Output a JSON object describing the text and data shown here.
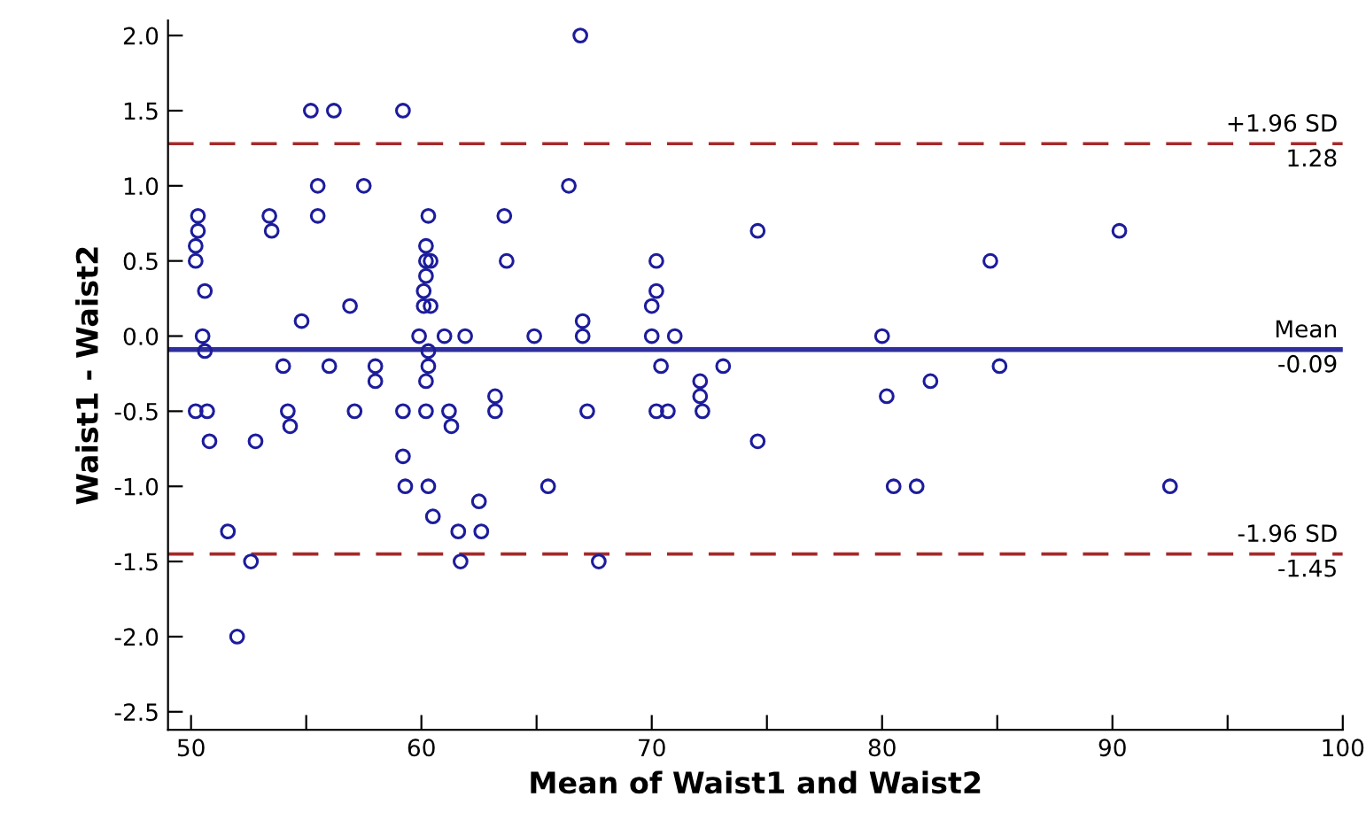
{
  "chart_data": {
    "type": "scatter",
    "xlabel": "Mean of Waist1 and Waist2",
    "ylabel": "Waist1 - Waist2",
    "marker": "circle",
    "grid": false,
    "xlim": [
      49,
      100
    ],
    "ylim": [
      -2.62,
      2.1
    ],
    "xticks": [
      50,
      {
        "value": 55,
        "label": null
      },
      60,
      {
        "value": 65,
        "label": null
      },
      70,
      {
        "value": 75,
        "label": null
      },
      80,
      {
        "value": 85,
        "label": null
      },
      90,
      {
        "value": 95,
        "label": null
      },
      100
    ],
    "yticks": [
      {
        "value": -2.5,
        "label": "-2.5"
      },
      {
        "value": -2.0,
        "label": "-2.0"
      },
      {
        "value": -1.5,
        "label": "-1.5"
      },
      {
        "value": -1.0,
        "label": "-1.0"
      },
      {
        "value": -0.5,
        "label": "-0.5"
      },
      {
        "value": 0.0,
        "label": "0.0"
      },
      {
        "value": 0.5,
        "label": "0.5"
      },
      {
        "value": 1.0,
        "label": "1.0"
      },
      {
        "value": 1.5,
        "label": "1.5"
      },
      {
        "value": 2.0,
        "label": "2.0"
      }
    ],
    "series": [
      {
        "color": "#1c1c9c",
        "x": [
          50.3,
          50.3,
          50.2,
          50.2,
          50.6,
          50.5,
          50.6,
          50.2,
          50.7,
          50.8,
          51.6,
          52.6,
          52.0,
          52.8,
          53.4,
          53.5,
          54.8,
          54.0,
          54.2,
          54.3,
          55.2,
          56.2,
          55.5,
          55.5,
          56.0,
          57.1,
          56.9,
          57.5,
          58.0,
          58.0,
          59.2,
          59.2,
          59.2,
          59.3,
          60.3,
          60.5,
          60.3,
          60.2,
          60.2,
          60.4,
          60.2,
          60.1,
          60.1,
          60.4,
          59.9,
          61.0,
          61.9,
          60.3,
          60.3,
          60.2,
          60.2,
          61.2,
          61.3,
          61.6,
          61.7,
          62.5,
          62.6,
          63.2,
          63.2,
          63.6,
          63.7,
          64.9,
          65.5,
          66.4,
          66.9,
          67.0,
          67.0,
          67.2,
          67.7,
          70.2,
          70.2,
          70.0,
          70.0,
          71.0,
          70.4,
          70.2,
          70.7,
          73.1,
          72.1,
          72.1,
          72.2,
          74.6,
          74.6,
          80.0,
          80.2,
          80.5,
          81.5,
          82.1,
          84.7,
          85.1,
          90.3,
          92.5
        ],
        "values": [
          0.8,
          0.7,
          0.6,
          0.5,
          0.3,
          0.0,
          -0.1,
          -0.5,
          -0.5,
          -0.7,
          -1.3,
          -1.5,
          -2.0,
          -0.7,
          0.8,
          0.7,
          0.1,
          -0.2,
          -0.5,
          -0.6,
          1.5,
          1.5,
          1.0,
          0.8,
          -0.2,
          -0.5,
          0.2,
          1.0,
          -0.2,
          -0.3,
          1.5,
          -0.5,
          -0.8,
          -1.0,
          -1.0,
          -1.2,
          0.8,
          0.6,
          0.5,
          0.5,
          0.4,
          0.3,
          0.2,
          0.2,
          0.0,
          0.0,
          0.0,
          -0.1,
          -0.2,
          -0.3,
          -0.5,
          -0.5,
          -0.6,
          -1.3,
          -1.5,
          -1.1,
          -1.3,
          -0.4,
          -0.5,
          0.8,
          0.5,
          0.0,
          -1.0,
          1.0,
          2.0,
          0.1,
          0.0,
          -0.5,
          -1.5,
          0.5,
          0.3,
          0.2,
          0.0,
          0.0,
          -0.2,
          -0.5,
          -0.5,
          -0.2,
          -0.3,
          -0.4,
          -0.5,
          0.7,
          -0.7,
          0.0,
          -0.4,
          -1.0,
          -1.0,
          -0.3,
          0.5,
          -0.2,
          0.7,
          -1.0
        ]
      }
    ],
    "ref_lines": [
      {
        "axis": "y",
        "value": 1.28,
        "label": "+1.96 SD",
        "color": "#a52a2a",
        "line_style": "dashed"
      },
      {
        "axis": "y",
        "value": -0.09,
        "label": "Mean",
        "color": "#2e2e9e",
        "line_style": "solid"
      },
      {
        "axis": "y",
        "value": -1.45,
        "label": "-1.96 SD",
        "color": "#a52a2a",
        "line_style": "dashed"
      }
    ],
    "annotations": [
      {
        "text": "1.28",
        "y": 1.28
      },
      {
        "text": "-0.09",
        "y": -0.09
      },
      {
        "text": "-1.45",
        "y": -1.45
      }
    ]
  }
}
